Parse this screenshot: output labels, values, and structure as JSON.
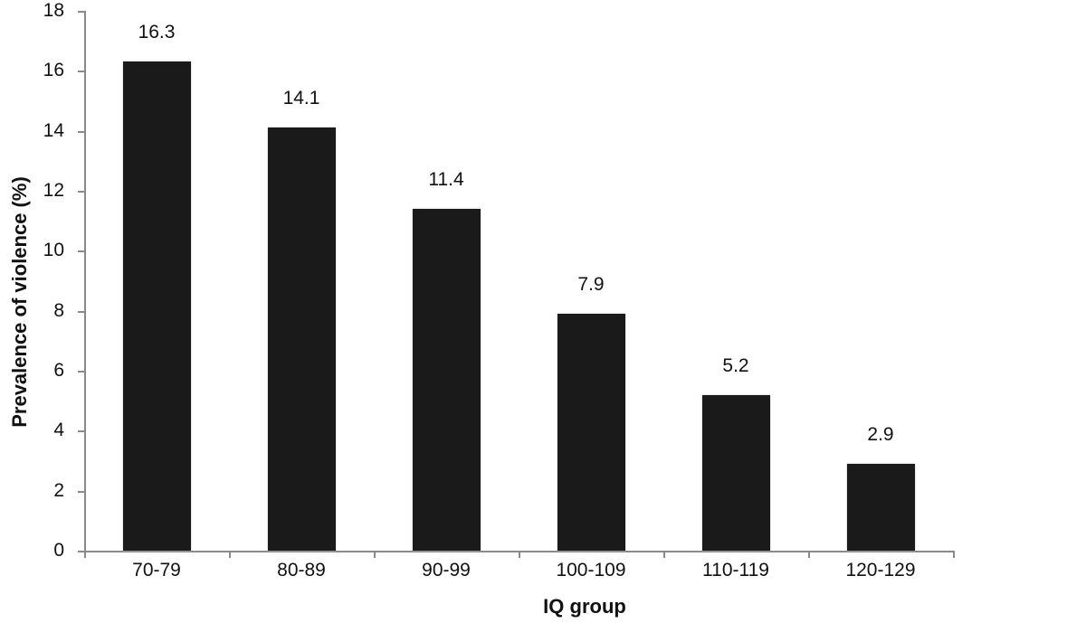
{
  "chart_data": {
    "type": "bar",
    "title": "",
    "xlabel": "IQ group",
    "ylabel": "Prevalence of violence (%)",
    "categories": [
      "70-79",
      "80-89",
      "90-99",
      "100-109",
      "110-119",
      "120-129"
    ],
    "values": [
      16.3,
      14.1,
      11.4,
      7.9,
      5.2,
      2.9
    ],
    "data_labels": [
      "16.3",
      "14.1",
      "11.4",
      "7.9",
      "5.2",
      "2.9"
    ],
    "ylim": [
      0,
      18
    ],
    "yticks": [
      "0",
      "2",
      "4",
      "6",
      "8",
      "10",
      "12",
      "14",
      "16",
      "18"
    ],
    "grid": false,
    "legend": null,
    "bar_color": "#1a1a1a",
    "axis_color": "#8a8a8a"
  }
}
